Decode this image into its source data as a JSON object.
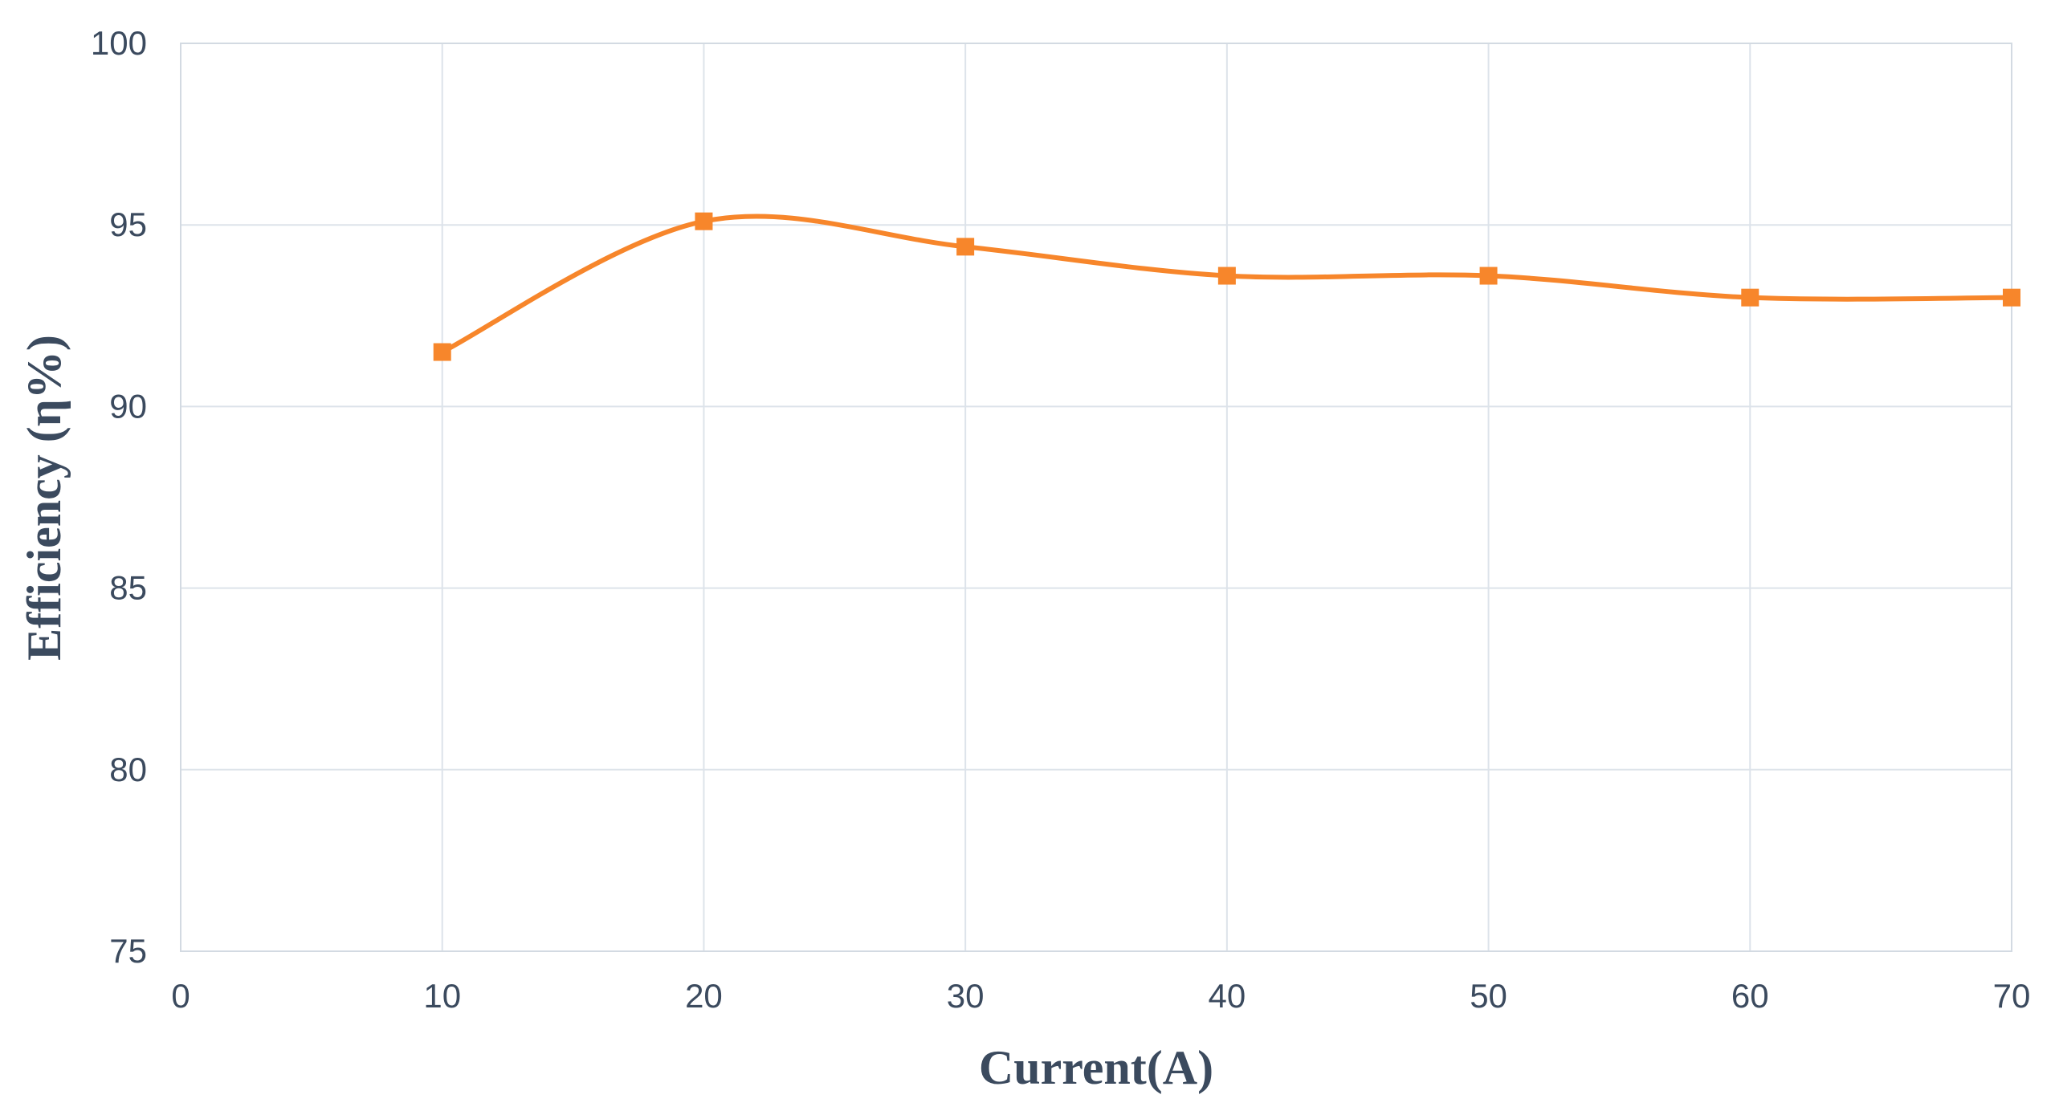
{
  "chart_data": {
    "type": "line",
    "x": [
      10,
      20,
      30,
      40,
      50,
      60,
      70
    ],
    "series": [
      {
        "values": [
          91.5,
          95.1,
          94.4,
          93.6,
          93.6,
          93.0,
          93.0
        ],
        "color": "#f7862b",
        "marker": "square",
        "smooth": true
      }
    ],
    "title": "",
    "xlabel": "Current(A)",
    "ylabel": "Efficiency (η%)",
    "xlim": [
      0,
      70
    ],
    "ylim": [
      75,
      100
    ],
    "x_ticks": [
      "0",
      "10",
      "20",
      "30",
      "40",
      "50",
      "60",
      "70"
    ],
    "y_ticks": [
      "75",
      "80",
      "85",
      "90",
      "95",
      "100"
    ],
    "grid": true,
    "legend": "none"
  }
}
